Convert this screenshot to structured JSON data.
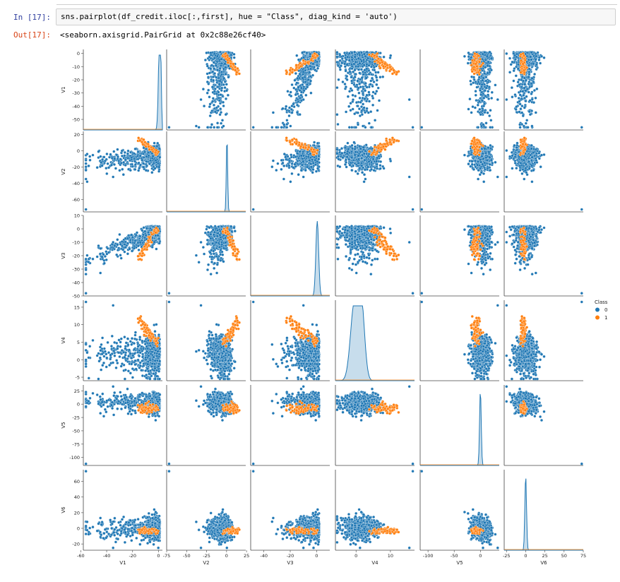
{
  "notebook": {
    "input_prompt": "In [17]:",
    "code": "sns.pairplot(df_credit.iloc[:,first], hue = \"Class\", diag_kind = 'auto')",
    "output_prompt": "Out[17]:",
    "output_text": "<seaborn.axisgrid.PairGrid at 0x2c88e26cf40>"
  },
  "colors": {
    "class_0": "#1f77b4",
    "class_1": "#ff7f0e",
    "prompt_in": "#303f9f",
    "prompt_out": "#d84315"
  },
  "chart_data": {
    "type": "scatter",
    "kind": "pairplot",
    "variables": [
      "V1",
      "V2",
      "V3",
      "V4",
      "V5",
      "V6"
    ],
    "diag_kind": "kde",
    "hue": "Class",
    "legend": {
      "title": "Class",
      "labels": [
        "0",
        "1"
      ],
      "placement": "right"
    },
    "axes": {
      "V1": {
        "range": [
          -58,
          3
        ],
        "ticks": [
          -60,
          -40,
          -20,
          0
        ],
        "yticks": [
          0,
          -10,
          -20,
          -30,
          -40,
          -50
        ]
      },
      "V2": {
        "range": [
          -75,
          24
        ],
        "ticks": [
          -75,
          -50,
          -25,
          0,
          25
        ],
        "yticks": [
          20,
          0,
          -20,
          -40,
          -60
        ]
      },
      "V3": {
        "range": [
          -50,
          10
        ],
        "ticks": [
          -40,
          -20,
          0
        ],
        "yticks": [
          10,
          0,
          -10,
          -20,
          -30,
          -40,
          -50
        ]
      },
      "V4": {
        "range": [
          -6,
          17
        ],
        "ticks": [
          0,
          10
        ],
        "yticks": [
          15,
          10,
          5,
          0,
          -5
        ]
      },
      "V5": {
        "range": [
          -115,
          36
        ],
        "ticks": [
          -100,
          -50,
          0
        ],
        "yticks": [
          25,
          0,
          -25,
          -50,
          -75,
          -100
        ]
      },
      "V6": {
        "range": [
          -28,
          75
        ],
        "ticks": [
          -25,
          0,
          25,
          50,
          75
        ],
        "yticks": [
          60,
          40,
          20,
          0,
          -20
        ]
      }
    },
    "class_1_clusters": {
      "V1_V2": [
        [
          -14,
          20
        ],
        [
          -10,
          14
        ],
        [
          -6,
          10
        ],
        [
          -4,
          6
        ],
        [
          -3,
          -4
        ]
      ],
      "V1_V3": [
        [
          -15,
          -22
        ],
        [
          -10,
          -16
        ],
        [
          -5,
          -10
        ],
        [
          -3,
          -3
        ]
      ],
      "V2_V4": [
        [
          10,
          12
        ],
        [
          15,
          11
        ],
        [
          18,
          9
        ],
        [
          20,
          6
        ]
      ]
    }
  }
}
